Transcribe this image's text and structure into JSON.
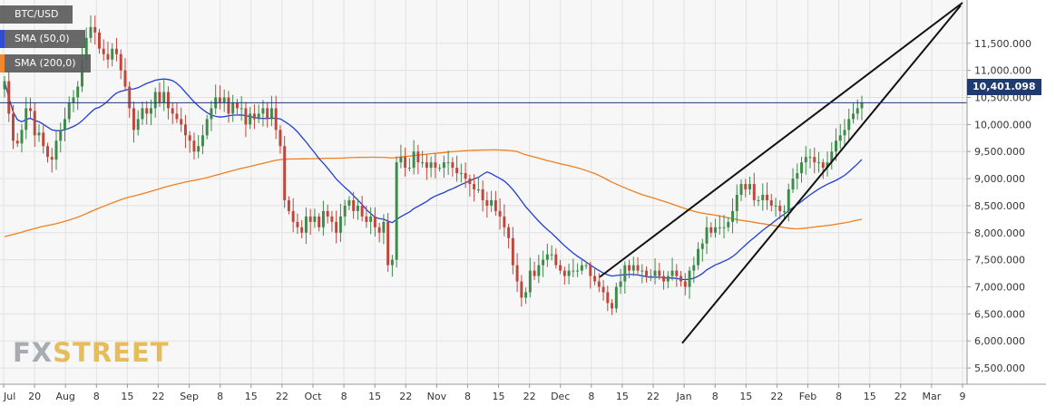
{
  "chart_data": {
    "type": "candlestick",
    "title": "BTC/USD",
    "indicators": [
      {
        "name": "SMA (50,0)",
        "color": "#1f3fd1"
      },
      {
        "name": "SMA (200,0)",
        "color": "#f07f1f"
      }
    ],
    "current_price": "10,401.098",
    "ylim": [
      5200,
      12300
    ],
    "y_ticks": [
      {
        "value": 5500,
        "label": "5,500.000"
      },
      {
        "value": 6000,
        "label": "6,000.000"
      },
      {
        "value": 6500,
        "label": "6,500.000"
      },
      {
        "value": 7000,
        "label": "7,000.000"
      },
      {
        "value": 7500,
        "label": "7,500.000"
      },
      {
        "value": 8000,
        "label": "8,000.000"
      },
      {
        "value": 8500,
        "label": "8,500.000"
      },
      {
        "value": 9000,
        "label": "9,000.000"
      },
      {
        "value": 9500,
        "label": "9,500.000"
      },
      {
        "value": 10000,
        "label": "10,000.000"
      },
      {
        "value": 10500,
        "label": "10,500.000"
      },
      {
        "value": 11000,
        "label": "11,000.000"
      },
      {
        "value": 11500,
        "label": "11,500.000"
      }
    ],
    "x_ticks": [
      "Jul",
      "20",
      "Aug",
      "8",
      "15",
      "22",
      "Sep",
      "8",
      "15",
      "22",
      "Oct",
      "8",
      "15",
      "22",
      "Nov",
      "8",
      "15",
      "22",
      "Dec",
      "8",
      "15",
      "22",
      "Jan",
      "8",
      "15",
      "22",
      "Feb",
      "8",
      "15",
      "22",
      "Mar",
      "9"
    ],
    "closes": [
      10800,
      10200,
      9700,
      9650,
      9900,
      10300,
      10250,
      9800,
      9850,
      9600,
      9400,
      9350,
      9700,
      9900,
      10100,
      10400,
      10500,
      10700,
      11200,
      11600,
      11800,
      11700,
      11400,
      11300,
      11200,
      11400,
      11300,
      11000,
      10700,
      10300,
      9900,
      10100,
      10300,
      10200,
      10300,
      10600,
      10400,
      10600,
      10300,
      10200,
      10100,
      10000,
      9800,
      9700,
      9500,
      9600,
      9800,
      10100,
      10300,
      10500,
      10400,
      10500,
      10200,
      10400,
      10300,
      10300,
      10000,
      10200,
      10100,
      10200,
      10300,
      10100,
      10300,
      9900,
      9600,
      8600,
      8400,
      8200,
      8100,
      8000,
      8300,
      8200,
      8300,
      8100,
      8400,
      8300,
      8200,
      8000,
      8300,
      8500,
      8600,
      8400,
      8500,
      8300,
      8200,
      8300,
      8100,
      8000,
      8200,
      7400,
      7500,
      9300,
      9400,
      9200,
      9200,
      9500,
      9300,
      9300,
      9200,
      9300,
      9200,
      9200,
      9300,
      9300,
      9200,
      9100,
      9100,
      9000,
      8900,
      8800,
      8800,
      8600,
      8500,
      8600,
      8400,
      8300,
      8100,
      7900,
      7400,
      7100,
      6800,
      6900,
      7300,
      7200,
      7400,
      7500,
      7600,
      7600,
      7400,
      7300,
      7200,
      7300,
      7300,
      7300,
      7400,
      7400,
      7200,
      7100,
      7000,
      6900,
      6700,
      6600,
      7000,
      7100,
      7400,
      7300,
      7400,
      7300,
      7300,
      7200,
      7200,
      7300,
      7200,
      7100,
      7200,
      7300,
      7200,
      7100,
      7000,
      7300,
      7400,
      7700,
      7800,
      8100,
      8000,
      8100,
      8100,
      8100,
      8200,
      8400,
      8700,
      8900,
      8800,
      8900,
      8600,
      8600,
      8700,
      8600,
      8500,
      8500,
      8400,
      8400,
      8800,
      9000,
      9100,
      9300,
      9400,
      9400,
      9300,
      9300,
      9200,
      9300,
      9500,
      9700,
      9800,
      9900,
      10100,
      10200,
      10300,
      10400
    ]
  }
}
